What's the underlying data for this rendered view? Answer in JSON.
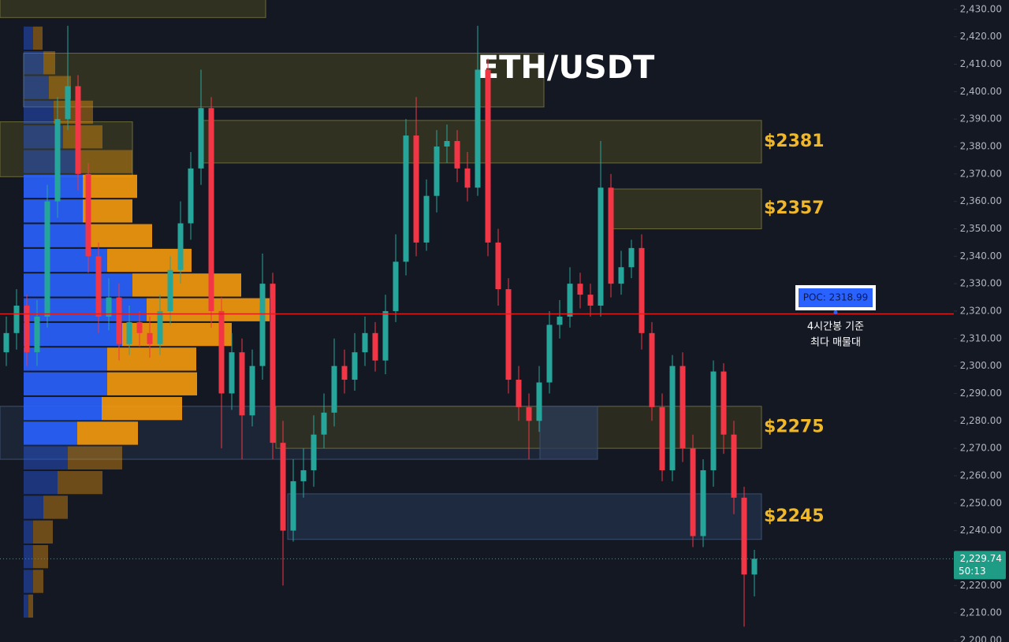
{
  "chart_data": {
    "type": "candlestick",
    "title": "ETH/USDT",
    "ylim": [
      2199.4,
      2433.4
    ],
    "yticks": [
      {
        "value": 2200,
        "label": "2,200.00"
      },
      {
        "value": 2210,
        "label": "2,210.00"
      },
      {
        "value": 2220,
        "label": "2,220.00"
      },
      {
        "value": 2230,
        "label": "2,230.00"
      },
      {
        "value": 2240,
        "label": "2,240.00"
      },
      {
        "value": 2250,
        "label": "2,250.00"
      },
      {
        "value": 2260,
        "label": "2,260.00"
      },
      {
        "value": 2270,
        "label": "2,270.00"
      },
      {
        "value": 2280,
        "label": "2,280.00"
      },
      {
        "value": 2290,
        "label": "2,290.00"
      },
      {
        "value": 2300,
        "label": "2,300.00"
      },
      {
        "value": 2310,
        "label": "2,310.00"
      },
      {
        "value": 2320,
        "label": "2,320.00"
      },
      {
        "value": 2330,
        "label": "2,330.00"
      },
      {
        "value": 2340,
        "label": "2,340.00"
      },
      {
        "value": 2350,
        "label": "2,350.00"
      },
      {
        "value": 2360,
        "label": "2,360.00"
      },
      {
        "value": 2370,
        "label": "2,370.00"
      },
      {
        "value": 2380,
        "label": "2,380.00"
      },
      {
        "value": 2390,
        "label": "2,390.00"
      },
      {
        "value": 2400,
        "label": "2,400.00"
      },
      {
        "value": 2410,
        "label": "2,410.00"
      },
      {
        "value": 2420,
        "label": "2,420.00"
      },
      {
        "value": 2430,
        "label": "2,430.00"
      }
    ],
    "grid": false,
    "up_color": "#26a69a",
    "down_color": "#f23645",
    "open": [
      2305,
      2312,
      2322,
      2305,
      2318,
      2360,
      2390,
      2402,
      2370,
      2340,
      2318,
      2325,
      2308,
      2316,
      2312,
      2308,
      2320,
      2335,
      2352,
      2372,
      2394,
      2320,
      2290,
      2305,
      2282,
      2300,
      2330,
      2272,
      2240,
      2258,
      2262,
      2275,
      2283,
      2300,
      2295,
      2305,
      2312,
      2302,
      2320,
      2338,
      2384,
      2345,
      2362,
      2380,
      2382,
      2372,
      2365,
      2408,
      2345,
      2328,
      2295,
      2285,
      2280,
      2294,
      2315,
      2318,
      2330,
      2326,
      2322,
      2365,
      2330,
      2336,
      2343,
      2312,
      2285,
      2262,
      2300,
      2270,
      2238,
      2262,
      2298,
      2275,
      2252,
      2224
    ],
    "high": [
      2318,
      2328,
      2326,
      2324,
      2366,
      2398,
      2424,
      2406,
      2374,
      2345,
      2332,
      2330,
      2322,
      2320,
      2318,
      2326,
      2340,
      2360,
      2378,
      2408,
      2398,
      2325,
      2312,
      2310,
      2306,
      2341,
      2334,
      2280,
      2266,
      2270,
      2282,
      2290,
      2310,
      2306,
      2312,
      2318,
      2316,
      2326,
      2348,
      2390,
      2398,
      2368,
      2386,
      2388,
      2386,
      2378,
      2424,
      2412,
      2350,
      2332,
      2300,
      2290,
      2300,
      2320,
      2324,
      2336,
      2334,
      2330,
      2382,
      2370,
      2342,
      2346,
      2348,
      2316,
      2290,
      2304,
      2305,
      2275,
      2266,
      2302,
      2301,
      2280,
      2256,
      2233
    ],
    "low": [
      2300,
      2306,
      2300,
      2300,
      2314,
      2354,
      2386,
      2364,
      2334,
      2312,
      2313,
      2302,
      2304,
      2307,
      2303,
      2304,
      2315,
      2330,
      2346,
      2366,
      2314,
      2270,
      2284,
      2266,
      2278,
      2295,
      2266,
      2220,
      2236,
      2252,
      2256,
      2270,
      2278,
      2290,
      2291,
      2300,
      2298,
      2297,
      2316,
      2333,
      2340,
      2342,
      2356,
      2374,
      2367,
      2360,
      2362,
      2340,
      2322,
      2290,
      2280,
      2266,
      2276,
      2290,
      2310,
      2314,
      2321,
      2318,
      2318,
      2325,
      2326,
      2332,
      2306,
      2280,
      2258,
      2258,
      2265,
      2234,
      2234,
      2256,
      2268,
      2246,
      2205,
      2216
    ],
    "close": [
      2312,
      2322,
      2305,
      2318,
      2360,
      2390,
      2402,
      2370,
      2340,
      2318,
      2325,
      2308,
      2316,
      2312,
      2308,
      2320,
      2335,
      2352,
      2372,
      2394,
      2320,
      2290,
      2305,
      2282,
      2300,
      2330,
      2272,
      2240,
      2258,
      2262,
      2275,
      2283,
      2300,
      2295,
      2305,
      2312,
      2302,
      2320,
      2338,
      2384,
      2345,
      2362,
      2380,
      2382,
      2372,
      2365,
      2408,
      2345,
      2328,
      2295,
      2285,
      2280,
      2294,
      2315,
      2318,
      2330,
      2326,
      2322,
      2365,
      2330,
      2336,
      2343,
      2312,
      2285,
      2262,
      2300,
      2270,
      2238,
      2262,
      2298,
      2275,
      2252,
      2224,
      2229.74
    ],
    "volume_profile": {
      "bins": [
        2424,
        2415,
        2406,
        2397,
        2388,
        2379,
        2370,
        2361,
        2352,
        2343,
        2334,
        2325,
        2316,
        2307,
        2298,
        2289,
        2280,
        2271,
        2262,
        2253,
        2244,
        2235,
        2226,
        2217,
        2208
      ],
      "buy": [
        12,
        25,
        32,
        38,
        50,
        68,
        75,
        75,
        80,
        106,
        138,
        156,
        125,
        106,
        106,
        99,
        68,
        56,
        43,
        25,
        12,
        12,
        12,
        6
      ],
      "sell": [
        12,
        15,
        28,
        50,
        50,
        70,
        69,
        63,
        83,
        107,
        138,
        156,
        139,
        113,
        114,
        102,
        77,
        69,
        57,
        31,
        25,
        19,
        13,
        6
      ],
      "buy_color": "#2962ff",
      "sell_color": "#f59a0c",
      "value_area": [
        2271,
        2370
      ]
    },
    "zones": [
      {
        "low": 2427,
        "high": 2434,
        "color": "#3b3a22"
      },
      {
        "low": 2394.4,
        "high": 2414,
        "color": "#3b3a22"
      },
      {
        "low": 2369,
        "high": 2389,
        "color": "#3b3a22"
      },
      {
        "label": "$2381",
        "low": 2374,
        "high": 2389.5,
        "color": "#3b3a22"
      },
      {
        "label": "$2357",
        "low": 2350,
        "high": 2364.5,
        "color": "#3b3a22"
      },
      {
        "low": 2266,
        "high": 2285.3,
        "color": "#1f2a3c"
      },
      {
        "label": "$2275",
        "low": 2270,
        "high": 2285.3,
        "color": "#33321f"
      },
      {
        "low": 2266,
        "high": 2285.3,
        "color": "#2a3a55"
      },
      {
        "label": "$2245",
        "low": 2236.8,
        "high": 2253.4,
        "color": "#22304a"
      }
    ],
    "poc": {
      "value": 2318.99,
      "label": "POC: 2318.99"
    },
    "annotation": [
      "4시간봉 기준",
      "최다 매물대"
    ],
    "last_price": {
      "value": 2229.74,
      "label": "2,229.74"
    },
    "countdown": "50:13"
  }
}
